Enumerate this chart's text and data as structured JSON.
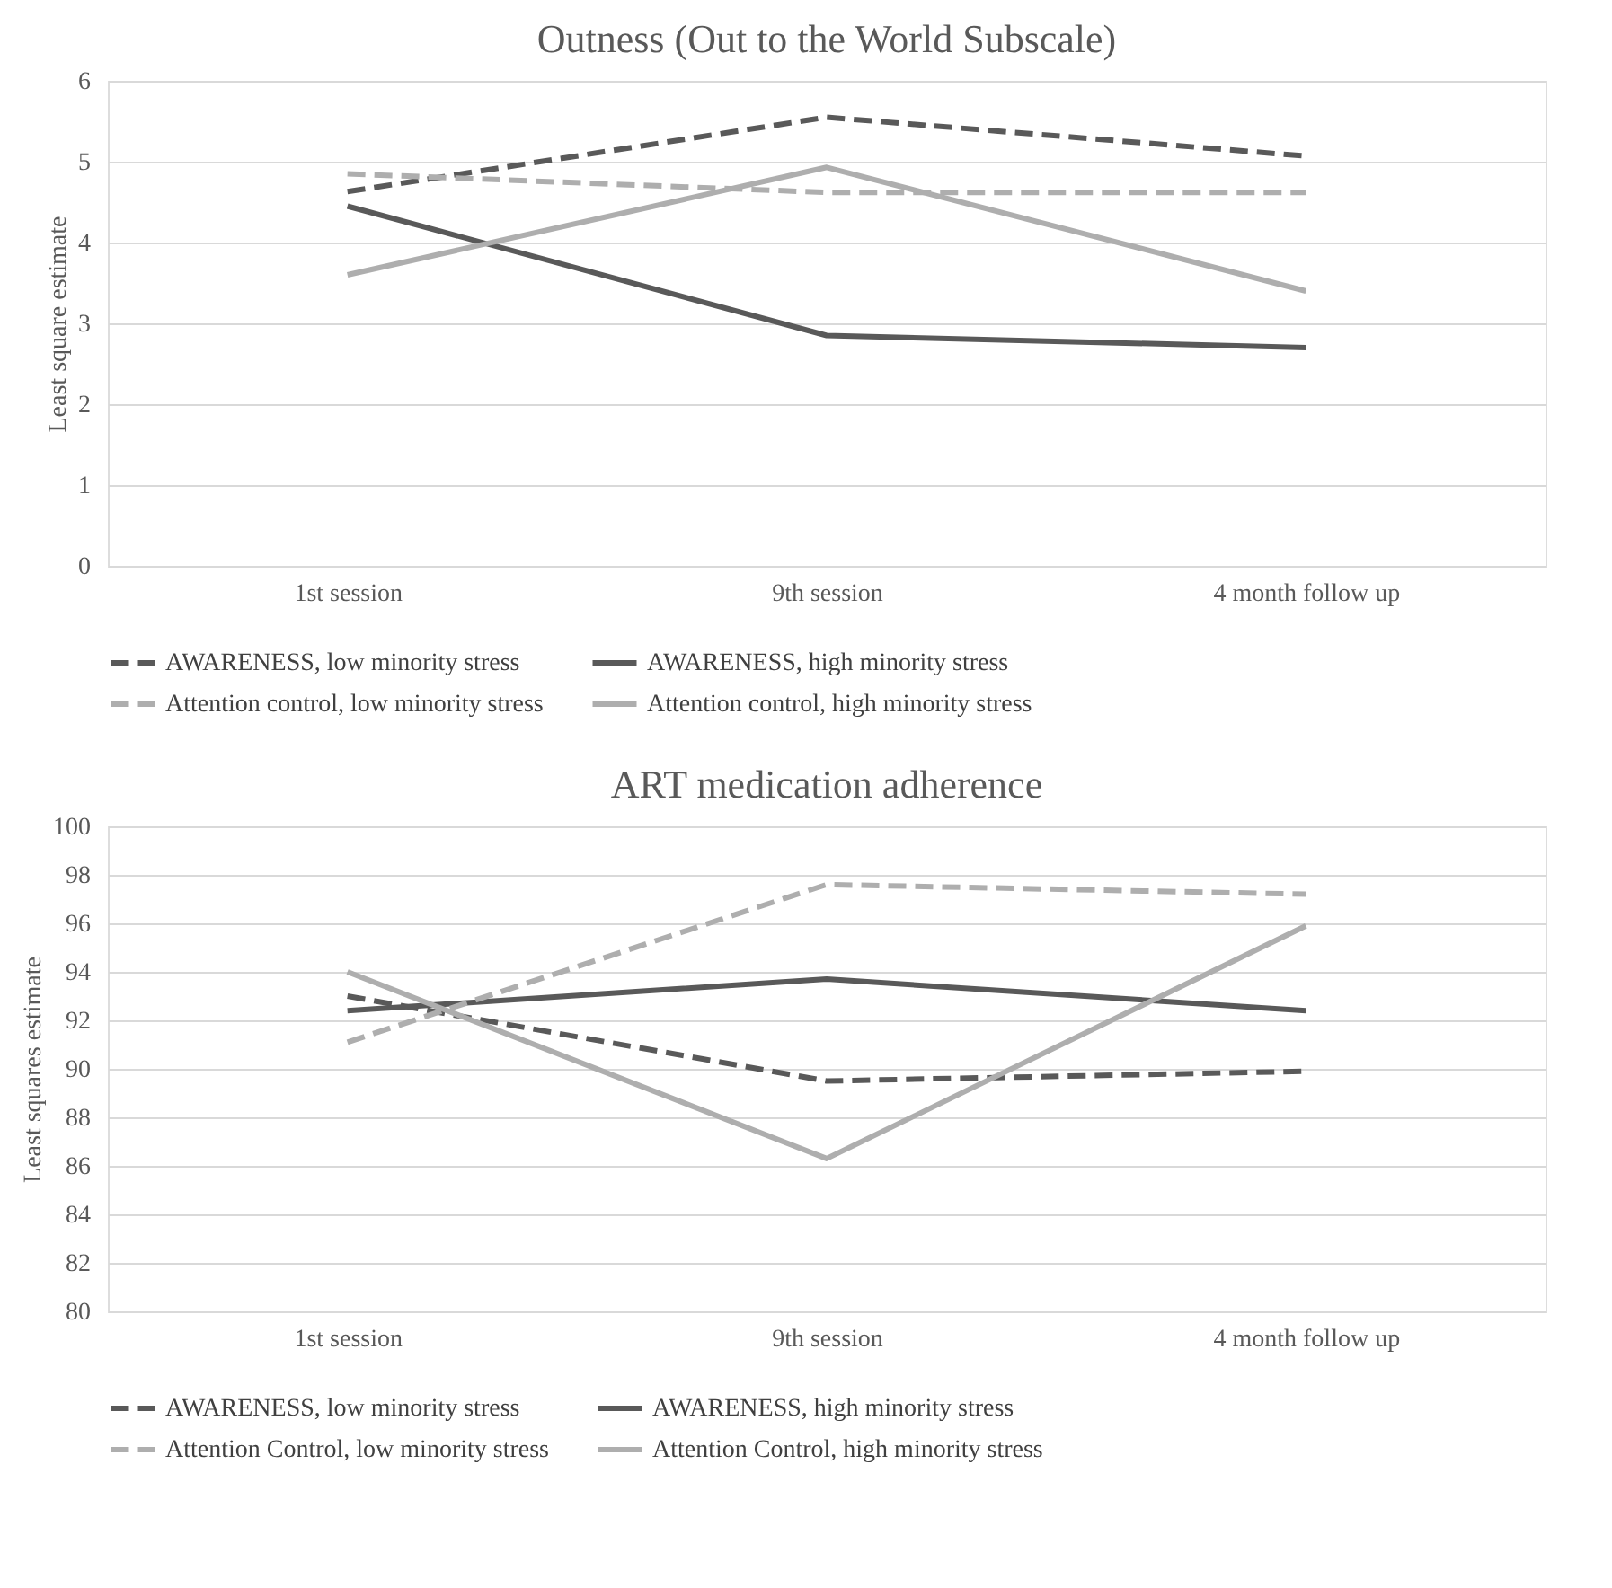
{
  "chart_data": [
    {
      "type": "line",
      "title": "Outness (Out to the World Subscale)",
      "ylabel": "Least square estimate",
      "categories": [
        "1st session",
        "9th session",
        "4 month follow up"
      ],
      "ylim": [
        0,
        6
      ],
      "yticks": [
        0,
        1,
        2,
        3,
        4,
        5,
        6
      ],
      "grid": "y",
      "legend": "bottom",
      "marker": "none",
      "series": [
        {
          "name": "AWARENESS, low minority stress",
          "color": "#595959",
          "line_style": "dashed",
          "values": [
            4.63,
            5.55,
            5.07
          ]
        },
        {
          "name": "AWARENESS, high minority stress",
          "color": "#595959",
          "line_style": "solid",
          "values": [
            4.45,
            2.85,
            2.7
          ]
        },
        {
          "name": "Attention control, low minority stress",
          "color": "#aeaeae",
          "line_style": "dashed",
          "values": [
            4.85,
            4.62,
            4.62
          ]
        },
        {
          "name": "Attention control, high minority stress",
          "color": "#aeaeae",
          "line_style": "solid",
          "values": [
            3.6,
            4.93,
            3.4
          ]
        }
      ]
    },
    {
      "type": "line",
      "title": "ART medication adherence",
      "ylabel": "Least squares estimate",
      "categories": [
        "1st session",
        "9th session",
        "4 month follow up"
      ],
      "ylim": [
        80,
        100
      ],
      "yticks": [
        80,
        82,
        84,
        86,
        88,
        90,
        92,
        94,
        96,
        98,
        100
      ],
      "grid": "y",
      "legend": "bottom",
      "marker": "none",
      "series": [
        {
          "name": "AWARENESS, low minority stress",
          "color": "#595959",
          "line_style": "dashed",
          "values": [
            93.0,
            89.5,
            89.9
          ]
        },
        {
          "name": "AWARENESS, high minority stress",
          "color": "#595959",
          "line_style": "solid",
          "values": [
            92.4,
            93.7,
            92.4
          ]
        },
        {
          "name": "Attention Control, low minority stress",
          "color": "#aeaeae",
          "line_style": "dashed",
          "values": [
            91.1,
            97.6,
            97.2
          ]
        },
        {
          "name": "Attention Control, high minority stress",
          "color": "#aeaeae",
          "line_style": "solid",
          "values": [
            94.0,
            86.3,
            95.9
          ]
        }
      ]
    }
  ]
}
